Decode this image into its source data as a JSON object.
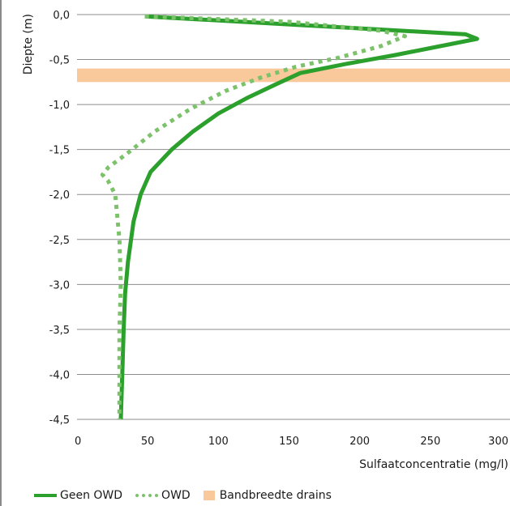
{
  "chart_data": {
    "type": "line",
    "title": "",
    "xlabel": "Sulfaatconcentratie (mg/l)",
    "ylabel": "Diepte (m)",
    "xlim": [
      0,
      300
    ],
    "ylim": [
      -4.5,
      0.0
    ],
    "x_ticks": [
      0,
      50,
      100,
      150,
      200,
      250,
      300
    ],
    "y_ticks": [
      0.0,
      -0.5,
      -1.0,
      -1.5,
      -2.0,
      -2.5,
      -3.0,
      -3.5,
      -4.0,
      -4.5
    ],
    "x_tick_labels": [
      "0",
      "50",
      "100",
      "150",
      "200",
      "250",
      "300"
    ],
    "y_tick_labels": [
      "0,0",
      "-0,5",
      "-1,0",
      "-1,5",
      "-2,0",
      "-2,5",
      "-3,0",
      "-3,5",
      "-4,0",
      "-4,5"
    ],
    "grid": "horizontal",
    "legend_position": "bottom",
    "series": [
      {
        "name": "Geen OWD",
        "style": "solid",
        "color": "#2ca02c",
        "points": [
          [
            48,
            -0.02
          ],
          [
            275,
            -0.22
          ],
          [
            283,
            -0.27
          ],
          [
            225,
            -0.45
          ],
          [
            190,
            -0.55
          ],
          [
            158,
            -0.65
          ],
          [
            140,
            -0.78
          ],
          [
            120,
            -0.93
          ],
          [
            100,
            -1.1
          ],
          [
            82,
            -1.3
          ],
          [
            67,
            -1.5
          ],
          [
            52,
            -1.75
          ],
          [
            45,
            -2.0
          ],
          [
            40,
            -2.3
          ],
          [
            36,
            -2.75
          ],
          [
            34,
            -3.1
          ],
          [
            33,
            -3.5
          ],
          [
            32,
            -4.0
          ],
          [
            31,
            -4.5
          ]
        ]
      },
      {
        "name": "OWD",
        "style": "dotted",
        "color": "#7cc26b",
        "points": [
          [
            48,
            -0.02
          ],
          [
            150,
            -0.08
          ],
          [
            215,
            -0.18
          ],
          [
            232,
            -0.24
          ],
          [
            215,
            -0.35
          ],
          [
            185,
            -0.48
          ],
          [
            155,
            -0.58
          ],
          [
            130,
            -0.7
          ],
          [
            105,
            -0.85
          ],
          [
            80,
            -1.05
          ],
          [
            55,
            -1.3
          ],
          [
            35,
            -1.55
          ],
          [
            22,
            -1.7
          ],
          [
            18,
            -1.78
          ],
          [
            22,
            -1.85
          ],
          [
            27,
            -2.0
          ],
          [
            30,
            -2.5
          ],
          [
            31,
            -3.0
          ],
          [
            30,
            -3.5
          ],
          [
            30,
            -4.0
          ],
          [
            30,
            -4.5
          ]
        ]
      }
    ],
    "band": {
      "name": "Bandbreedte drains",
      "color": "#f9c89b",
      "y_range": [
        -0.6,
        -0.75
      ]
    }
  }
}
